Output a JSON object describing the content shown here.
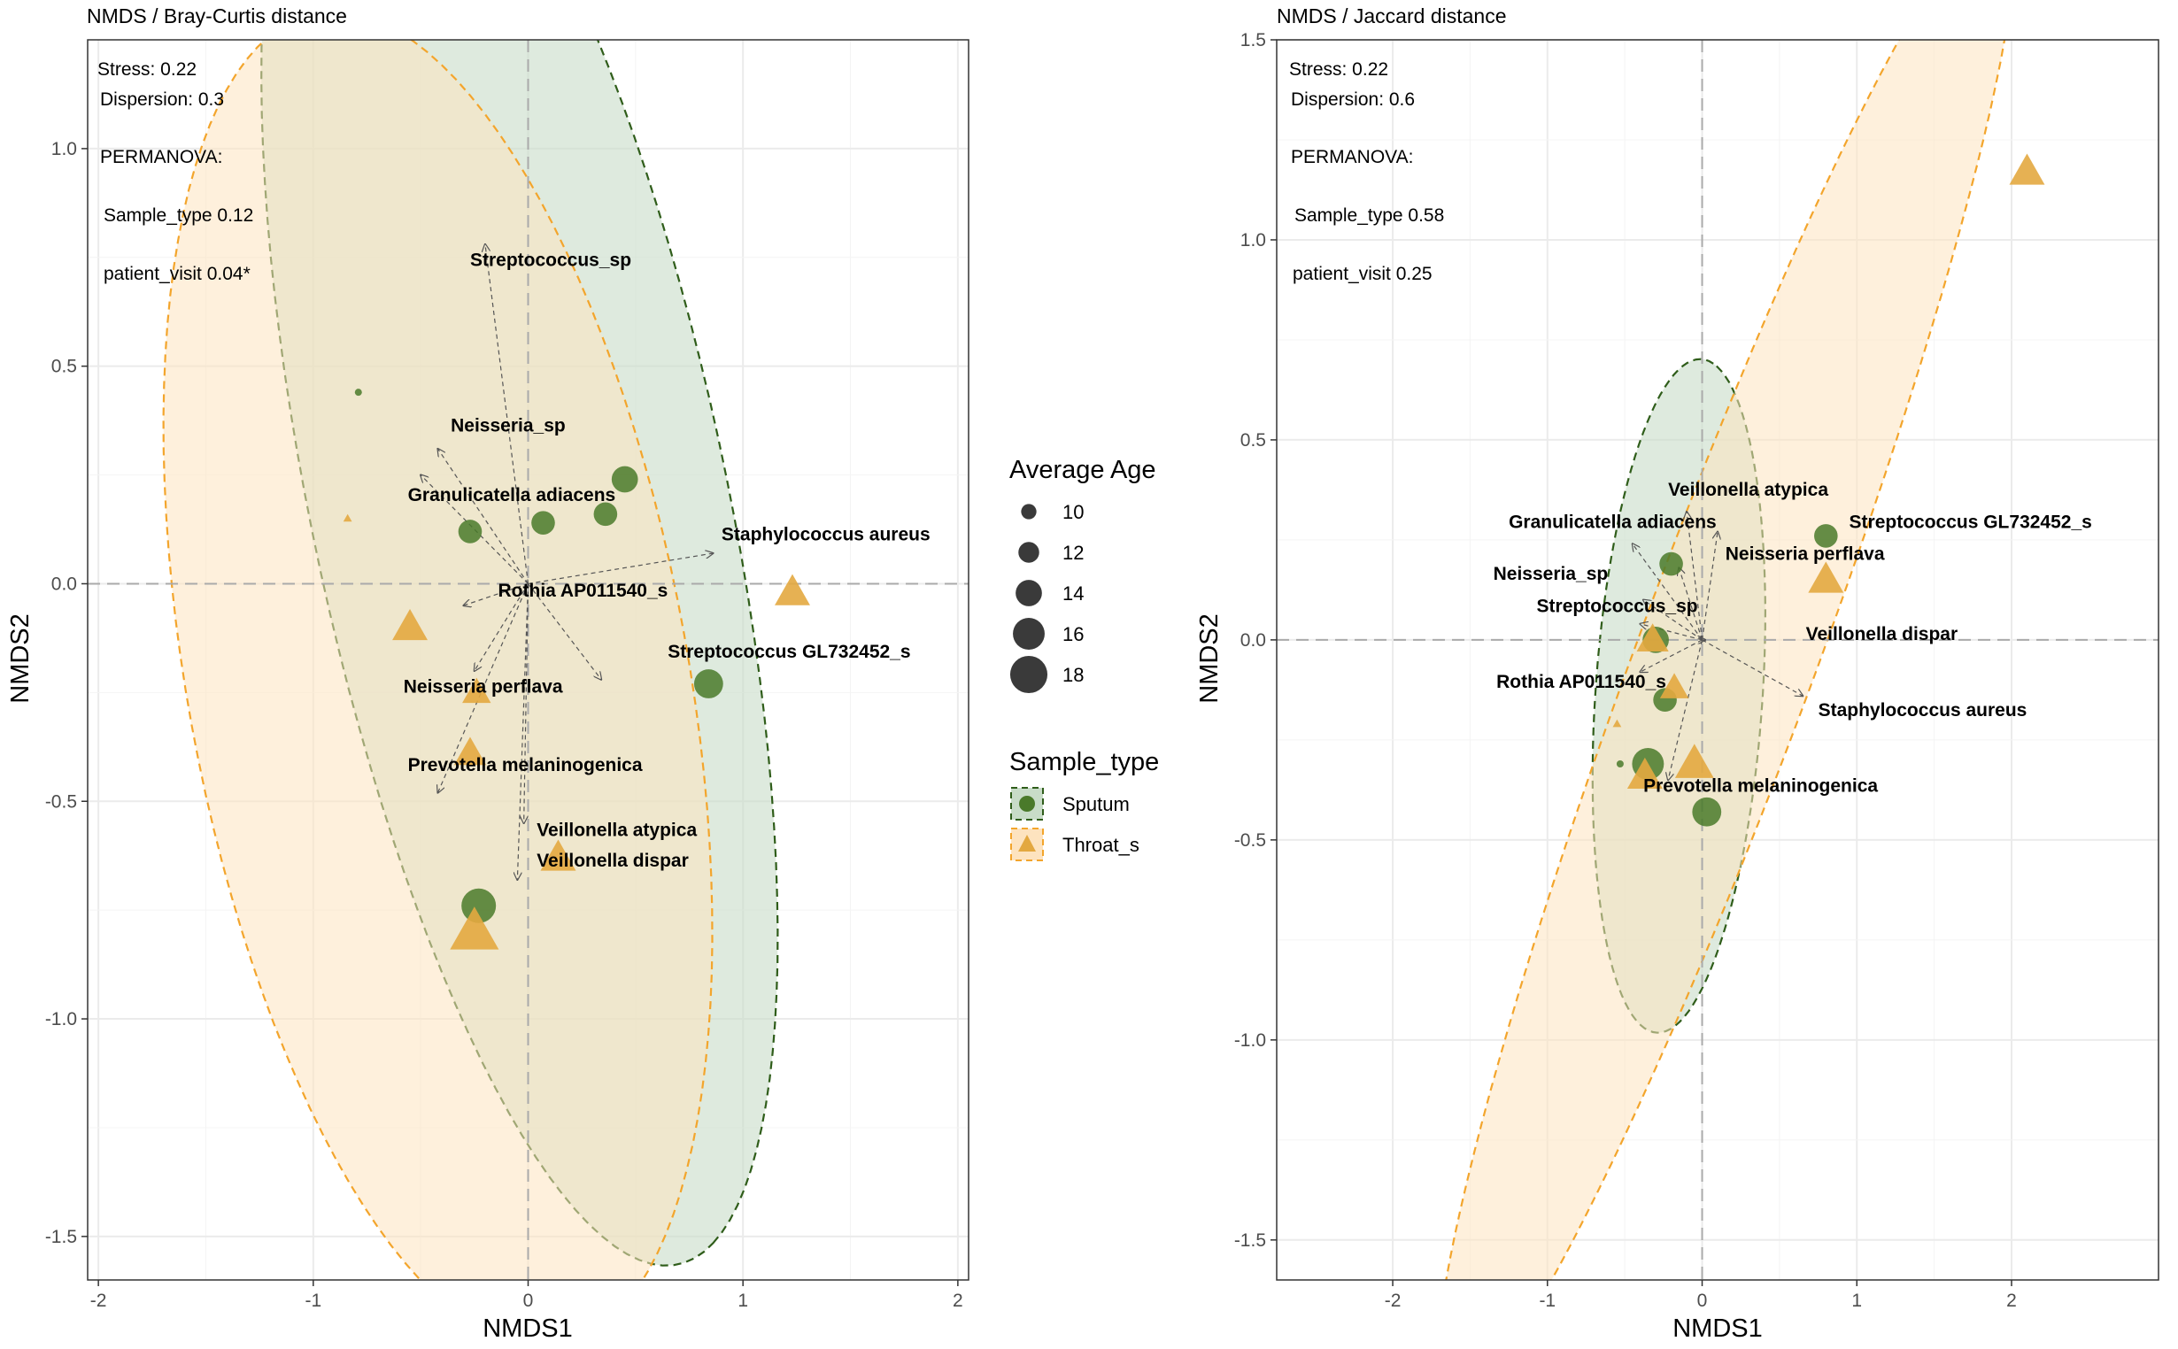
{
  "colors": {
    "sputum": "#4a7a2a",
    "throat": "#e3a840",
    "sputum_fill": "#c8dcc8",
    "throat_fill": "#fde3bf",
    "sputum_line": "#2f5d1a",
    "throat_line": "#f3a52c",
    "grid": "#ebebeb",
    "arrow": "#555555"
  },
  "legend": {
    "size_title": "Average Age",
    "size_values": [
      "10",
      "12",
      "14",
      "16",
      "18"
    ],
    "type_title": "Sample_type",
    "type_items": [
      "Sputum",
      "Throat_s"
    ]
  },
  "chart_data": [
    {
      "type": "scatter",
      "title": "NMDS / Bray-Curtis distance",
      "xlabel": "NMDS1",
      "ylabel": "NMDS2",
      "xlim": [
        -2.05,
        2.05
      ],
      "ylim": [
        -1.6,
        1.25
      ],
      "xticks": [
        "-2",
        "-1",
        "0",
        "1",
        "2"
      ],
      "yticks": [
        "1.0",
        "0.5",
        "0.0",
        "-0.5",
        "-1.0",
        "-1.5"
      ],
      "stats": {
        "stress": "Stress: 0.22",
        "dispersion": "Dispersion: 0.3",
        "permanova": "PERMANOVA:",
        "sample_type": "Sample_type  0.12",
        "patient_visit": "patient_visit 0.04*"
      },
      "ellipses": [
        {
          "group": "Sputum",
          "cx": -0.04,
          "cy": 0.18,
          "rx": 1.92,
          "ry": 0.9,
          "angle_deg": -62
        },
        {
          "group": "Throat_s",
          "cx": -0.42,
          "cy": -0.22,
          "rx": 1.68,
          "ry": 1.08,
          "angle_deg": -58
        }
      ],
      "points": [
        {
          "x": -0.79,
          "y": 0.44,
          "group": "Sputum",
          "age": 7
        },
        {
          "x": -0.27,
          "y": 0.12,
          "group": "Sputum",
          "age": 13
        },
        {
          "x": 0.07,
          "y": 0.14,
          "group": "Sputum",
          "age": 13
        },
        {
          "x": 0.36,
          "y": 0.16,
          "group": "Sputum",
          "age": 13
        },
        {
          "x": 0.45,
          "y": 0.24,
          "group": "Sputum",
          "age": 14
        },
        {
          "x": 0.84,
          "y": -0.23,
          "group": "Sputum",
          "age": 15
        },
        {
          "x": -0.23,
          "y": -0.74,
          "group": "Sputum",
          "age": 17
        },
        {
          "x": -0.84,
          "y": 0.15,
          "group": "Throat_s",
          "age": 7
        },
        {
          "x": -0.55,
          "y": -0.1,
          "group": "Throat_s",
          "age": 15
        },
        {
          "x": -0.24,
          "y": -0.25,
          "group": "Throat_s",
          "age": 13
        },
        {
          "x": -0.27,
          "y": -0.39,
          "group": "Throat_s",
          "age": 14
        },
        {
          "x": 0.14,
          "y": -0.63,
          "group": "Throat_s",
          "age": 15
        },
        {
          "x": 1.23,
          "y": -0.02,
          "group": "Throat_s",
          "age": 15
        },
        {
          "x": -0.25,
          "y": -0.8,
          "group": "Throat_s",
          "age": 19
        }
      ],
      "species": [
        {
          "name": "Streptococcus_sp",
          "x": -0.27,
          "y": 0.73,
          "ax": -0.2,
          "ay": 0.78
        },
        {
          "name": "Neisseria_sp",
          "x": -0.36,
          "y": 0.35,
          "ax": -0.42,
          "ay": 0.31
        },
        {
          "name": "Granulicatella adiacens",
          "x": -0.56,
          "y": 0.19,
          "ax": -0.5,
          "ay": 0.25
        },
        {
          "name": "Staphylococcus aureus",
          "x": 0.9,
          "y": 0.1,
          "ax": 0.86,
          "ay": 0.07
        },
        {
          "name": "Rothia AP011540_s",
          "x": -0.14,
          "y": -0.03,
          "ax": -0.3,
          "ay": -0.05
        },
        {
          "name": "Streptococcus GL732452_s",
          "x": 0.65,
          "y": -0.17,
          "ax": 0.34,
          "ay": -0.22
        },
        {
          "name": "Neisseria perflava",
          "x": -0.58,
          "y": -0.25,
          "ax": -0.25,
          "ay": -0.2
        },
        {
          "name": "Prevotella melaninogenica",
          "x": -0.56,
          "y": -0.43,
          "ax": -0.42,
          "ay": -0.48
        },
        {
          "name": "Veillonella atypica",
          "x": 0.04,
          "y": -0.58,
          "ax": -0.02,
          "ay": -0.55
        },
        {
          "name": "Veillonella dispar",
          "x": 0.04,
          "y": -0.65,
          "ax": -0.05,
          "ay": -0.68
        }
      ]
    },
    {
      "type": "scatter",
      "title": "NMDS / Jaccard distance",
      "xlabel": "NMDS1",
      "ylabel": "NMDS2",
      "xlim": [
        -2.75,
        2.95
      ],
      "ylim": [
        -1.6,
        1.5
      ],
      "xticks": [
        "-2",
        "-1",
        "0",
        "1",
        "2"
      ],
      "yticks": [
        "1.5",
        "1.0",
        "0.5",
        "0.0",
        "-0.5",
        "-1.0",
        "-1.5"
      ],
      "stats": {
        "stress": "Stress: 0.22",
        "dispersion": "Dispersion: 0.6",
        "permanova": "PERMANOVA:",
        "sample_type": "Sample_type  0.58",
        "patient_visit": "patient_visit 0.25"
      },
      "ellipses": [
        {
          "group": "Sputum",
          "cx": -0.15,
          "cy": -0.14,
          "rx": 0.86,
          "ry": 0.53,
          "angle_deg": 75
        },
        {
          "group": "Throat_s",
          "cx": 0.15,
          "cy": -0.05,
          "rx": 2.6,
          "ry": 0.44,
          "angle_deg": 45
        }
      ],
      "points": [
        {
          "x": -0.53,
          "y": -0.31,
          "group": "Sputum",
          "age": 7
        },
        {
          "x": -0.2,
          "y": 0.19,
          "group": "Sputum",
          "age": 13
        },
        {
          "x": 0.8,
          "y": 0.26,
          "group": "Sputum",
          "age": 13
        },
        {
          "x": -0.3,
          "y": 0.0,
          "group": "Sputum",
          "age": 14
        },
        {
          "x": -0.24,
          "y": -0.15,
          "group": "Sputum",
          "age": 13
        },
        {
          "x": -0.35,
          "y": -0.31,
          "group": "Sputum",
          "age": 16
        },
        {
          "x": 0.03,
          "y": -0.43,
          "group": "Sputum",
          "age": 15
        },
        {
          "x": -0.55,
          "y": -0.21,
          "group": "Throat_s",
          "age": 7
        },
        {
          "x": -0.32,
          "y": 0.0,
          "group": "Throat_s",
          "age": 14
        },
        {
          "x": -0.18,
          "y": -0.12,
          "group": "Throat_s",
          "age": 13
        },
        {
          "x": -0.05,
          "y": -0.31,
          "group": "Throat_s",
          "age": 16
        },
        {
          "x": -0.37,
          "y": -0.34,
          "group": "Throat_s",
          "age": 15
        },
        {
          "x": 0.8,
          "y": 0.15,
          "group": "Throat_s",
          "age": 15
        },
        {
          "x": 2.1,
          "y": 1.17,
          "group": "Throat_s",
          "age": 15
        }
      ],
      "species": [
        {
          "name": "Veillonella atypica",
          "x": -0.22,
          "y": 0.36,
          "ax": -0.1,
          "ay": 0.32
        },
        {
          "name": "Granulicatella adiacens",
          "x": -1.25,
          "y": 0.28,
          "ax": -0.45,
          "ay": 0.24
        },
        {
          "name": "Streptococcus GL732452_s",
          "x": 0.95,
          "y": 0.28,
          "ax": 0.1,
          "ay": 0.27
        },
        {
          "name": "Neisseria perflava",
          "x": 0.15,
          "y": 0.2,
          "ax": -0.15,
          "ay": 0.18
        },
        {
          "name": "Neisseria_sp",
          "x": -1.35,
          "y": 0.15,
          "ax": -0.38,
          "ay": 0.1
        },
        {
          "name": "Streptococcus_sp",
          "x": -1.07,
          "y": 0.07,
          "ax": -0.4,
          "ay": 0.04
        },
        {
          "name": "Veillonella dispar",
          "x": 0.67,
          "y": 0.0,
          "ax": 0.02,
          "ay": 0.0
        },
        {
          "name": "Rothia AP011540_s",
          "x": -1.33,
          "y": -0.12,
          "ax": -0.4,
          "ay": -0.08
        },
        {
          "name": "Staphylococcus aureus",
          "x": 0.75,
          "y": -0.19,
          "ax": 0.65,
          "ay": -0.14
        },
        {
          "name": "Prevotella melaninogenica",
          "x": -0.38,
          "y": -0.38,
          "ax": -0.22,
          "ay": -0.35
        }
      ]
    }
  ]
}
